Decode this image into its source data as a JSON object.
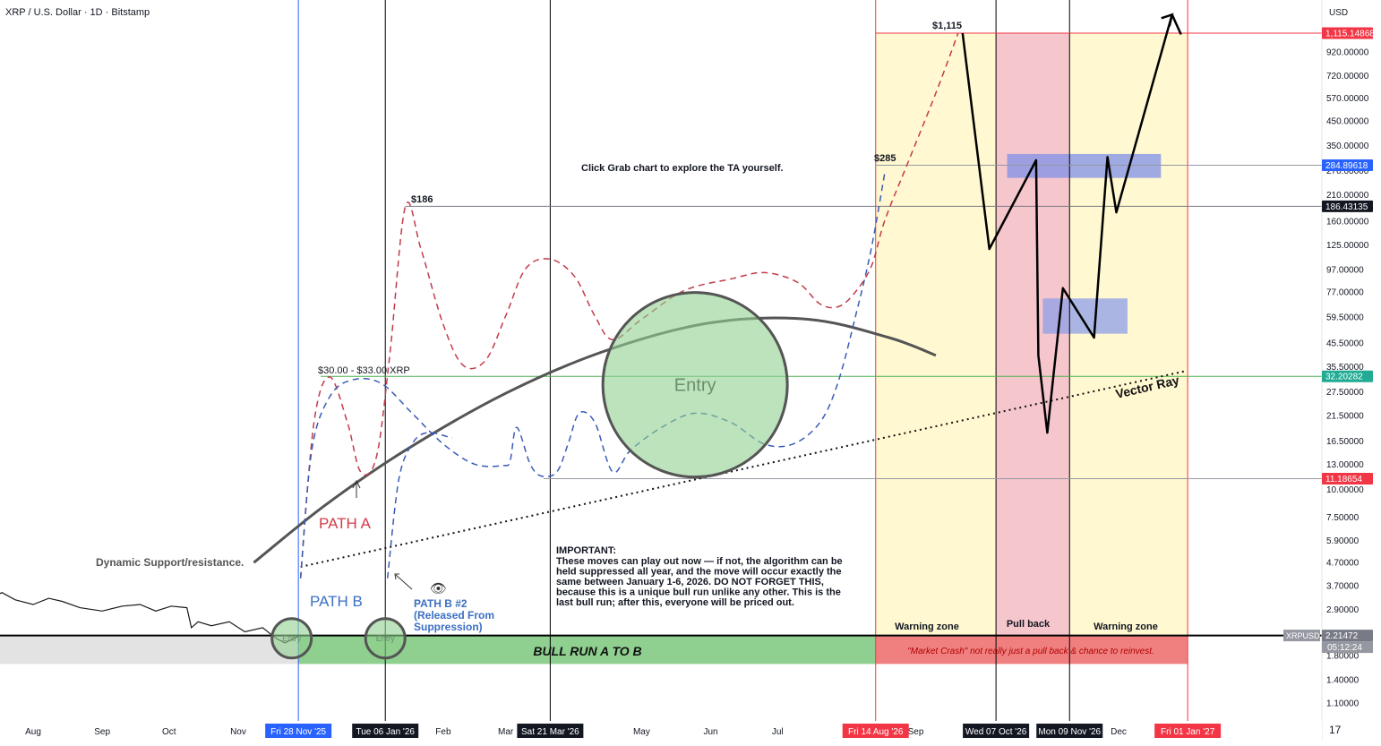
{
  "chart_data": {
    "type": "line",
    "title": "XRP / U.S. Dollar · 1D · Bitstamp",
    "currency": "USD",
    "y_scale": "log",
    "ylim": [
      0.85,
      1300
    ],
    "y_ticks": [
      {
        "label": "920.00000",
        "v": 920
      },
      {
        "label": "720.00000",
        "v": 720
      },
      {
        "label": "570.00000",
        "v": 570
      },
      {
        "label": "450.00000",
        "v": 450
      },
      {
        "label": "350.00000",
        "v": 350
      },
      {
        "label": "270.00000",
        "v": 270
      },
      {
        "label": "210.00000",
        "v": 210
      },
      {
        "label": "160.00000",
        "v": 160
      },
      {
        "label": "125.00000",
        "v": 125
      },
      {
        "label": "97.00000",
        "v": 97
      },
      {
        "label": "77.00000",
        "v": 77
      },
      {
        "label": "59.50000",
        "v": 59.5
      },
      {
        "label": "45.50000",
        "v": 45.5
      },
      {
        "label": "35.50000",
        "v": 35.5
      },
      {
        "label": "27.50000",
        "v": 27.5
      },
      {
        "label": "21.50000",
        "v": 21.5
      },
      {
        "label": "16.50000",
        "v": 16.5
      },
      {
        "label": "13.00000",
        "v": 13
      },
      {
        "label": "10.00000",
        "v": 10
      },
      {
        "label": "7.50000",
        "v": 7.5
      },
      {
        "label": "5.90000",
        "v": 5.9
      },
      {
        "label": "4.70000",
        "v": 4.7
      },
      {
        "label": "3.70000",
        "v": 3.7
      },
      {
        "label": "2.90000",
        "v": 2.9
      },
      {
        "label": "1.80000",
        "v": 1.8
      },
      {
        "label": "1.40000",
        "v": 1.4
      },
      {
        "label": "1.10000",
        "v": 1.1
      }
    ],
    "price_tags": [
      {
        "label": "1,115.14868",
        "v": 1115.14868,
        "bg": "#f23645",
        "fg": "#ffffff"
      },
      {
        "label": "284.89618",
        "v": 284.89618,
        "bg": "#2962ff",
        "fg": "#ffffff"
      },
      {
        "label": "186.43135",
        "v": 186.43135,
        "bg": "#131722",
        "fg": "#ffffff"
      },
      {
        "label": "32.20282",
        "v": 32.20282,
        "bg": "#22ab94",
        "fg": "#ffffff"
      },
      {
        "label": "11.18654",
        "v": 11.18654,
        "bg": "#f23645",
        "fg": "#ffffff"
      },
      {
        "label": "2.21472",
        "v": 2.21472,
        "bg": "#787b86",
        "fg": "#ffffff"
      }
    ],
    "symbol_tag": "XRPUSD",
    "countdown": "05:12:24",
    "x_ticks": [
      {
        "label": "Aug",
        "date": "2025-08-01"
      },
      {
        "label": "Sep",
        "date": "2025-09-01"
      },
      {
        "label": "Oct",
        "date": "2025-10-01"
      },
      {
        "label": "Nov",
        "date": "2025-11-01"
      },
      {
        "label": "Feb",
        "date": "2026-02-01"
      },
      {
        "label": "Mar",
        "date": "2026-03-01"
      },
      {
        "label": "May",
        "date": "2026-05-01"
      },
      {
        "label": "Jun",
        "date": "2026-06-01"
      },
      {
        "label": "Jul",
        "date": "2026-07-01"
      },
      {
        "label": "Sep",
        "date": "2026-09-01"
      },
      {
        "label": "Dec",
        "date": "2026-12-01"
      }
    ],
    "x_highlights": [
      {
        "label": "Fri 28 Nov '25",
        "date": "2025-11-28",
        "bg": "#2962ff",
        "line": "#2962ff"
      },
      {
        "label": "Tue 06 Jan '26",
        "date": "2026-01-06",
        "bg": "#131722",
        "line": "#000000"
      },
      {
        "label": "Sat 21 Mar '26",
        "date": "2026-03-21",
        "bg": "#131722",
        "line": "#000000"
      },
      {
        "label": "Fri 14 Aug '26",
        "date": "2026-08-14",
        "bg": "#f23645",
        "line": "#f23645"
      },
      {
        "label": "Wed 07 Oct '26",
        "date": "2026-10-07",
        "bg": "#131722",
        "line": "#000000"
      },
      {
        "label": "Mon 09 Nov '26",
        "date": "2026-11-09",
        "bg": "#131722",
        "line": "#000000"
      },
      {
        "label": "Fri 01 Jan '27",
        "date": "2027-01-01",
        "bg": "#f23645",
        "line": "#f23645"
      }
    ],
    "price_history": [
      {
        "date": "2025-07-10",
        "v": 3.15
      },
      {
        "date": "2025-07-18",
        "v": 3.45
      },
      {
        "date": "2025-07-24",
        "v": 3.2
      },
      {
        "date": "2025-08-01",
        "v": 3.05
      },
      {
        "date": "2025-08-08",
        "v": 3.25
      },
      {
        "date": "2025-08-14",
        "v": 3.15
      },
      {
        "date": "2025-08-22",
        "v": 2.95
      },
      {
        "date": "2025-09-01",
        "v": 2.85
      },
      {
        "date": "2025-09-10",
        "v": 3.0
      },
      {
        "date": "2025-09-18",
        "v": 3.05
      },
      {
        "date": "2025-09-25",
        "v": 2.85
      },
      {
        "date": "2025-10-02",
        "v": 3.0
      },
      {
        "date": "2025-10-09",
        "v": 2.95
      },
      {
        "date": "2025-10-11",
        "v": 2.4
      },
      {
        "date": "2025-10-14",
        "v": 2.55
      },
      {
        "date": "2025-10-20",
        "v": 2.45
      },
      {
        "date": "2025-10-28",
        "v": 2.55
      },
      {
        "date": "2025-11-04",
        "v": 2.3
      },
      {
        "date": "2025-11-12",
        "v": 2.4
      },
      {
        "date": "2025-11-18",
        "v": 2.15
      },
      {
        "date": "2025-11-22",
        "v": 2.05
      },
      {
        "date": "2025-11-28",
        "v": 2.2
      }
    ],
    "path_a": {
      "name": "PATH A",
      "points": [
        {
          "date": "2025-11-29",
          "v": 4.0
        },
        {
          "date": "2025-12-05",
          "v": 20
        },
        {
          "date": "2025-12-12",
          "v": 32
        },
        {
          "date": "2025-12-20",
          "v": 20
        },
        {
          "date": "2025-12-26",
          "v": 12
        },
        {
          "date": "2026-01-02",
          "v": 14
        },
        {
          "date": "2026-01-08",
          "v": 40
        },
        {
          "date": "2026-01-15",
          "v": 186
        },
        {
          "date": "2026-01-22",
          "v": 120
        },
        {
          "date": "2026-02-01",
          "v": 55
        },
        {
          "date": "2026-02-10",
          "v": 36
        },
        {
          "date": "2026-02-20",
          "v": 38
        },
        {
          "date": "2026-03-01",
          "v": 60
        },
        {
          "date": "2026-03-10",
          "v": 98
        },
        {
          "date": "2026-03-21",
          "v": 108
        },
        {
          "date": "2026-04-01",
          "v": 90
        },
        {
          "date": "2026-04-10",
          "v": 60
        },
        {
          "date": "2026-04-18",
          "v": 47
        },
        {
          "date": "2026-05-01",
          "v": 58
        },
        {
          "date": "2026-05-20",
          "v": 78
        },
        {
          "date": "2026-06-10",
          "v": 88
        },
        {
          "date": "2026-06-25",
          "v": 94
        },
        {
          "date": "2026-07-10",
          "v": 85
        },
        {
          "date": "2026-07-20",
          "v": 68
        },
        {
          "date": "2026-07-28",
          "v": 66
        },
        {
          "date": "2026-08-04",
          "v": 75
        },
        {
          "date": "2026-08-12",
          "v": 100
        },
        {
          "date": "2026-08-18",
          "v": 160
        },
        {
          "date": "2026-08-28",
          "v": 285
        },
        {
          "date": "2026-09-10",
          "v": 600
        },
        {
          "date": "2026-09-20",
          "v": 1115
        }
      ]
    },
    "path_b": {
      "name": "PATH B",
      "points": [
        {
          "date": "2025-11-29",
          "v": 4.0
        },
        {
          "date": "2025-12-04",
          "v": 15
        },
        {
          "date": "2025-12-12",
          "v": 26
        },
        {
          "date": "2025-12-22",
          "v": 31
        },
        {
          "date": "2026-01-04",
          "v": 30
        },
        {
          "date": "2026-01-18",
          "v": 22
        },
        {
          "date": "2026-02-01",
          "v": 16
        },
        {
          "date": "2026-02-15",
          "v": 13
        },
        {
          "date": "2026-02-28",
          "v": 12.8
        },
        {
          "date": "2026-03-03",
          "v": 13.5
        },
        {
          "date": "2026-03-06",
          "v": 19
        },
        {
          "date": "2026-03-12",
          "v": 13
        },
        {
          "date": "2026-03-17",
          "v": 11.5
        },
        {
          "date": "2026-03-24",
          "v": 12
        },
        {
          "date": "2026-03-29",
          "v": 16
        },
        {
          "date": "2026-04-03",
          "v": 22
        },
        {
          "date": "2026-04-10",
          "v": 20
        },
        {
          "date": "2026-04-18",
          "v": 12
        },
        {
          "date": "2026-04-26",
          "v": 15
        },
        {
          "date": "2026-05-10",
          "v": 19
        },
        {
          "date": "2026-05-25",
          "v": 22
        },
        {
          "date": "2026-06-10",
          "v": 20
        },
        {
          "date": "2026-06-25",
          "v": 16
        },
        {
          "date": "2026-07-08",
          "v": 16
        },
        {
          "date": "2026-07-20",
          "v": 20
        },
        {
          "date": "2026-07-28",
          "v": 30
        },
        {
          "date": "2026-08-05",
          "v": 60
        },
        {
          "date": "2026-08-12",
          "v": 120
        },
        {
          "date": "2026-08-18",
          "v": 260
        }
      ]
    },
    "path_b2": {
      "name": "PATH B #2",
      "points": [
        {
          "date": "2026-01-07",
          "v": 4.0
        },
        {
          "date": "2026-01-12",
          "v": 11
        },
        {
          "date": "2026-01-18",
          "v": 16
        },
        {
          "date": "2026-01-25",
          "v": 18
        },
        {
          "date": "2026-02-05",
          "v": 17
        }
      ]
    },
    "projection": {
      "points": [
        {
          "date": "2026-09-22",
          "v": 1115
        },
        {
          "date": "2026-10-04",
          "v": 120
        },
        {
          "date": "2026-10-25",
          "v": 300
        },
        {
          "date": "2026-10-26",
          "v": 40
        },
        {
          "date": "2026-10-30",
          "v": 18
        },
        {
          "date": "2026-11-06",
          "v": 80
        },
        {
          "date": "2026-11-20",
          "v": 48
        },
        {
          "date": "2026-11-26",
          "v": 310
        },
        {
          "date": "2026-11-30",
          "v": 175
        },
        {
          "date": "2026-12-25",
          "v": 1350
        },
        {
          "date": "2026-12-29",
          "v": 1100
        }
      ]
    },
    "support_curve": {
      "points": [
        {
          "date": "2025-11-08",
          "v": 4.7
        },
        {
          "date": "2025-12-10",
          "v": 8.5
        },
        {
          "date": "2026-01-15",
          "v": 15
        },
        {
          "date": "2026-03-01",
          "v": 27
        },
        {
          "date": "2026-04-15",
          "v": 42
        },
        {
          "date": "2026-06-01",
          "v": 56
        },
        {
          "date": "2026-07-15",
          "v": 58
        },
        {
          "date": "2026-08-20",
          "v": 48
        },
        {
          "date": "2026-09-10",
          "v": 40
        }
      ]
    },
    "vector_ray": {
      "from": {
        "date": "2025-11-29",
        "v": 4.5
      },
      "to": {
        "date": "2026-12-31",
        "v": 34
      }
    },
    "levels": [
      {
        "v": 1115.14868,
        "color": "#f23645",
        "from": "2026-08-14"
      },
      {
        "v": 284.89618,
        "color": "#9598a1",
        "from": "2026-08-14"
      },
      {
        "v": 186.43135,
        "color": "#787b86",
        "from": "2026-01-15"
      },
      {
        "v": 32.20282,
        "color": "#4caf50",
        "from": "2025-12-08"
      },
      {
        "v": 11.18654,
        "color": "#9598a1",
        "from": "2026-03-18"
      },
      {
        "v": 2.21472,
        "color": "#000000",
        "from": "2025-07-10"
      }
    ],
    "zones": [
      {
        "from": "2025-11-28",
        "to": "2026-08-14",
        "top": 2.21,
        "bottom": 1.65,
        "color": "#8fcf8f"
      },
      {
        "from": "2025-07-10",
        "to": "2025-11-28",
        "top": 2.21,
        "bottom": 1.65,
        "color": "#e3e3e3"
      },
      {
        "from": "2026-08-14",
        "to": "2027-01-01",
        "top": 2.21,
        "bottom": 1.65,
        "color": "#f08080"
      },
      {
        "from": "2026-08-14",
        "to": "2026-10-07",
        "top": 1115,
        "bottom": 2.21,
        "color": "#fff8d0"
      },
      {
        "from": "2026-10-07",
        "to": "2026-11-09",
        "top": 1115,
        "bottom": 2.21,
        "color": "#f5c6cb"
      },
      {
        "from": "2026-11-09",
        "to": "2027-01-01",
        "top": 1115,
        "bottom": 2.21,
        "color": "#fff8d0"
      },
      {
        "from": "2026-10-12",
        "to": "2026-12-20",
        "top": 320,
        "bottom": 250,
        "color": "#7f8fe8"
      },
      {
        "from": "2026-10-28",
        "to": "2026-12-05",
        "top": 72,
        "bottom": 50,
        "color": "#8f9fea"
      }
    ],
    "entry_circles": [
      {
        "date": "2026-05-25",
        "v": 29.5,
        "label": "Entry",
        "big": true
      },
      {
        "date": "2025-11-25",
        "v": 2.15,
        "label": "Entry",
        "big": false
      },
      {
        "date": "2026-01-06",
        "v": 2.15,
        "label": "Entry",
        "big": false
      }
    ],
    "annotations": {
      "grab": "Click Grab chart to explore the TA yourself.",
      "peak_1115": "$1,115",
      "peak_285": "$285",
      "peak_186": "$186",
      "range_30_33": "$30.00 - $33.00 XRP",
      "path_a": "PATH A",
      "path_b": "PATH B",
      "path_b2_l1": "PATH B #2",
      "path_b2_l2": "(Released From",
      "path_b2_l3": "Suppression)",
      "support": "Dynamic Support/resistance.",
      "vector_ray": "Vector Ray",
      "bull_run": "BULL RUN A TO B",
      "market_crash": "\"Market Crash\" not really just a pull back & chance to reinvest.",
      "warning_zone_1": "Warning zone",
      "pull_back": "Pull back",
      "warning_zone_2": "Warning zone",
      "important_title": "IMPORTANT:",
      "important_lines": [
        "These moves can play out now — if not, the algorithm can be",
        "held suppressed all year, and the move will occur exactly the",
        "same between January 1-6, 2026. DO NOT FORGET THIS,",
        "because this is a unique bull run unlike any other. This is the",
        "last bull run; after this, everyone will be priced out."
      ]
    }
  }
}
